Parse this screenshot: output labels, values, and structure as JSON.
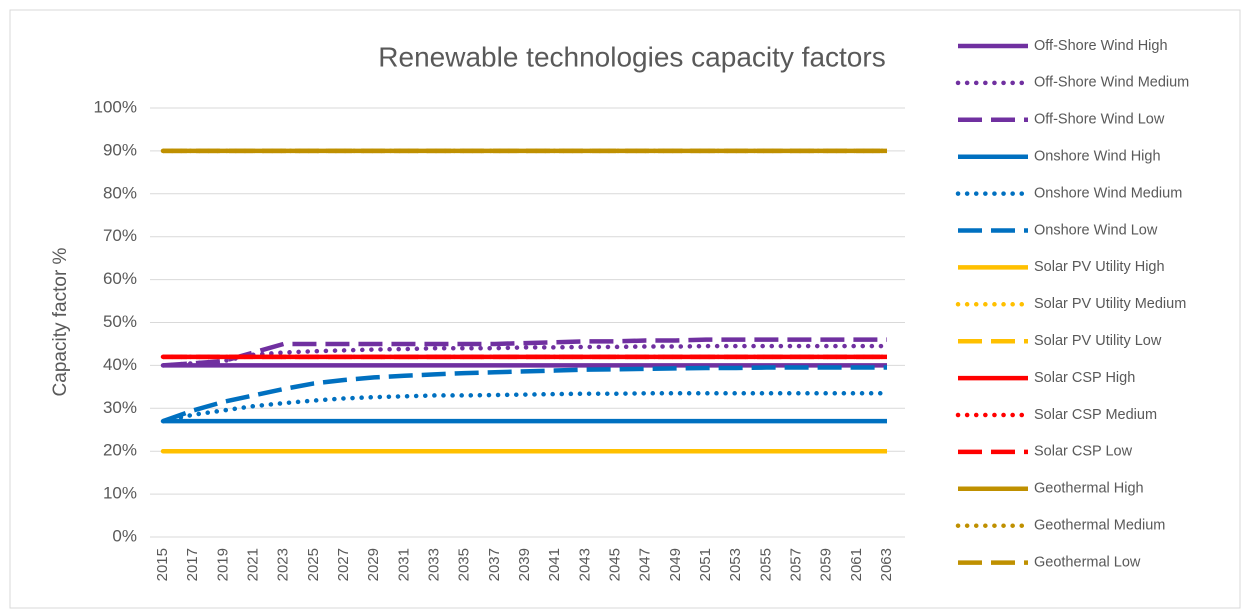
{
  "chart_data": {
    "type": "line",
    "title": "Renewable technologies capacity factors",
    "y_label": "Capacity factor %",
    "categories": [
      2015,
      2017,
      2019,
      2021,
      2023,
      2025,
      2027,
      2029,
      2031,
      2033,
      2035,
      2037,
      2039,
      2041,
      2043,
      2045,
      2047,
      2049,
      2051,
      2053,
      2055,
      2057,
      2059,
      2061,
      2063
    ],
    "ylim": [
      0,
      100
    ],
    "yticks": [
      {
        "value": 0,
        "label": "0%"
      },
      {
        "value": 10,
        "label": "10%"
      },
      {
        "value": 20,
        "label": "20%"
      },
      {
        "value": 30,
        "label": "30%"
      },
      {
        "value": 40,
        "label": "40%"
      },
      {
        "value": 50,
        "label": "50%"
      },
      {
        "value": 60,
        "label": "60%"
      },
      {
        "value": 70,
        "label": "70%"
      },
      {
        "value": 80,
        "label": "80%"
      },
      {
        "value": 90,
        "label": "90%"
      },
      {
        "value": 100,
        "label": "100%"
      }
    ],
    "grid": true,
    "legend": "right",
    "series": [
      {
        "name": "Off-Shore Wind High",
        "color": "#7030a0",
        "style": "solid",
        "values": [
          40,
          40,
          40,
          40,
          40,
          40,
          40,
          40,
          40,
          40,
          40,
          40,
          40,
          40,
          40,
          40,
          40,
          40,
          40,
          40,
          40,
          40,
          40,
          40,
          40
        ]
      },
      {
        "name": "Off-Shore Wind Medium",
        "color": "#7030a0",
        "style": "dotted",
        "values": [
          40,
          40.5,
          41,
          42.5,
          43,
          43.3,
          43.5,
          43.7,
          43.8,
          44,
          44,
          44,
          44.2,
          44.2,
          44.3,
          44.3,
          44.4,
          44.4,
          44.5,
          44.5,
          44.5,
          44.5,
          44.5,
          44.5,
          44.5
        ]
      },
      {
        "name": "Off-Shore Wind Low",
        "color": "#7030a0",
        "style": "dashed",
        "values": [
          40,
          40.5,
          41,
          43,
          45,
          45,
          45,
          45,
          45,
          45,
          45,
          45,
          45.2,
          45.4,
          45.6,
          45.6,
          45.8,
          45.8,
          46,
          46,
          46,
          46,
          46,
          46,
          46
        ]
      },
      {
        "name": "Onshore Wind High",
        "color": "#0070c0",
        "style": "solid",
        "values": [
          27,
          27,
          27,
          27,
          27,
          27,
          27,
          27,
          27,
          27,
          27,
          27,
          27,
          27,
          27,
          27,
          27,
          27,
          27,
          27,
          27,
          27,
          27,
          27,
          27
        ]
      },
      {
        "name": "Onshore Wind Medium",
        "color": "#0070c0",
        "style": "dotted",
        "values": [
          27,
          28.5,
          29.5,
          30.5,
          31.2,
          31.8,
          32.3,
          32.6,
          32.8,
          33,
          33,
          33.1,
          33.2,
          33.3,
          33.4,
          33.4,
          33.5,
          33.5,
          33.5,
          33.5,
          33.5,
          33.5,
          33.5,
          33.5,
          33.5
        ]
      },
      {
        "name": "Onshore Wind Low",
        "color": "#0070c0",
        "style": "dashed",
        "values": [
          27,
          29.5,
          31.5,
          33,
          34.5,
          35.8,
          36.6,
          37.2,
          37.6,
          37.9,
          38.2,
          38.4,
          38.6,
          38.8,
          39,
          39.1,
          39.2,
          39.3,
          39.4,
          39.4,
          39.5,
          39.5,
          39.5,
          39.5,
          39.5
        ]
      },
      {
        "name": "Solar PV Utility High",
        "color": "#ffc000",
        "style": "solid",
        "values": [
          20,
          20,
          20,
          20,
          20,
          20,
          20,
          20,
          20,
          20,
          20,
          20,
          20,
          20,
          20,
          20,
          20,
          20,
          20,
          20,
          20,
          20,
          20,
          20,
          20
        ]
      },
      {
        "name": "Solar PV Utility Medium",
        "color": "#ffc000",
        "style": "dotted",
        "values": [
          20,
          20,
          20,
          20,
          20,
          20,
          20,
          20,
          20,
          20,
          20,
          20,
          20,
          20,
          20,
          20,
          20,
          20,
          20,
          20,
          20,
          20,
          20,
          20,
          20
        ]
      },
      {
        "name": "Solar PV Utility Low",
        "color": "#ffc000",
        "style": "dashed",
        "values": [
          20,
          20,
          20,
          20,
          20,
          20,
          20,
          20,
          20,
          20,
          20,
          20,
          20,
          20,
          20,
          20,
          20,
          20,
          20,
          20,
          20,
          20,
          20,
          20,
          20
        ]
      },
      {
        "name": "Solar CSP High",
        "color": "#ff0000",
        "style": "solid",
        "values": [
          42,
          42,
          42,
          42,
          42,
          42,
          42,
          42,
          42,
          42,
          42,
          42,
          42,
          42,
          42,
          42,
          42,
          42,
          42,
          42,
          42,
          42,
          42,
          42,
          42
        ]
      },
      {
        "name": "Solar CSP Medium",
        "color": "#ff0000",
        "style": "dotted",
        "values": [
          42,
          42,
          42,
          42,
          42,
          42,
          42,
          42,
          42,
          42,
          42,
          42,
          42,
          42,
          42,
          42,
          42,
          42,
          42,
          42,
          42,
          42,
          42,
          42,
          42
        ]
      },
      {
        "name": "Solar CSP Low",
        "color": "#ff0000",
        "style": "dashed",
        "values": [
          42,
          42,
          42,
          42,
          42,
          42,
          42,
          42,
          42,
          42,
          42,
          42,
          42,
          42,
          42,
          42,
          42,
          42,
          42,
          42,
          42,
          42,
          42,
          42,
          42
        ]
      },
      {
        "name": "Geothermal High",
        "color": "#bf9000",
        "style": "solid",
        "values": [
          90,
          90,
          90,
          90,
          90,
          90,
          90,
          90,
          90,
          90,
          90,
          90,
          90,
          90,
          90,
          90,
          90,
          90,
          90,
          90,
          90,
          90,
          90,
          90,
          90
        ]
      },
      {
        "name": "Geothermal Medium",
        "color": "#bf9000",
        "style": "dotted",
        "values": [
          90,
          90,
          90,
          90,
          90,
          90,
          90,
          90,
          90,
          90,
          90,
          90,
          90,
          90,
          90,
          90,
          90,
          90,
          90,
          90,
          90,
          90,
          90,
          90,
          90
        ]
      },
      {
        "name": "Geothermal Low",
        "color": "#bf9000",
        "style": "dashed",
        "values": [
          90,
          90,
          90,
          90,
          90,
          90,
          90,
          90,
          90,
          90,
          90,
          90,
          90,
          90,
          90,
          90,
          90,
          90,
          90,
          90,
          90,
          90,
          90,
          90,
          90
        ]
      }
    ]
  }
}
